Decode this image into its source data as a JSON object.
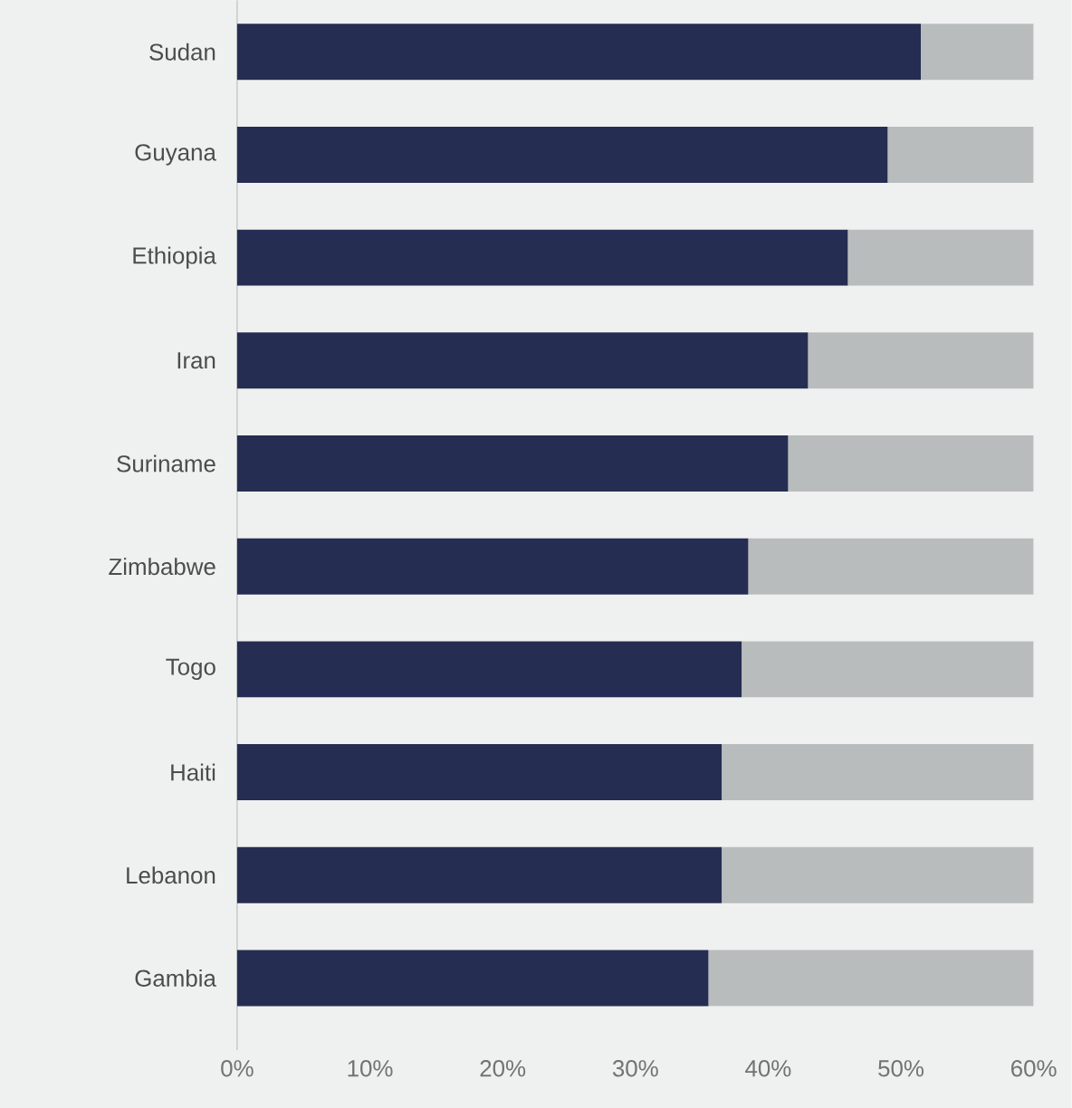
{
  "chart_data": {
    "type": "bar",
    "orientation": "horizontal",
    "stacked": true,
    "categories": [
      "Sudan",
      "Guyana",
      "Ethiopia",
      "Iran",
      "Suriname",
      "Zimbabwe",
      "Togo",
      "Haiti",
      "Lebanon",
      "Gambia"
    ],
    "series": [
      {
        "color": "#252d52",
        "values": [
          51.5,
          49,
          46,
          43,
          41.5,
          38.5,
          38,
          36.5,
          36.5,
          35.5
        ]
      },
      {
        "color": "#b8bcbc",
        "values": [
          8.5,
          11,
          14,
          17,
          18.5,
          21.5,
          22,
          23.5,
          23.5,
          24.5
        ]
      }
    ],
    "xlim": [
      0,
      60
    ],
    "xticks": [
      {
        "value": 0,
        "label": "0%"
      },
      {
        "value": 10,
        "label": "10%"
      },
      {
        "value": 20,
        "label": "20%"
      },
      {
        "value": 30,
        "label": "30%"
      },
      {
        "value": 40,
        "label": "40%"
      },
      {
        "value": 50,
        "label": "50%"
      },
      {
        "value": 60,
        "label": "60%"
      }
    ],
    "grid": false
  }
}
